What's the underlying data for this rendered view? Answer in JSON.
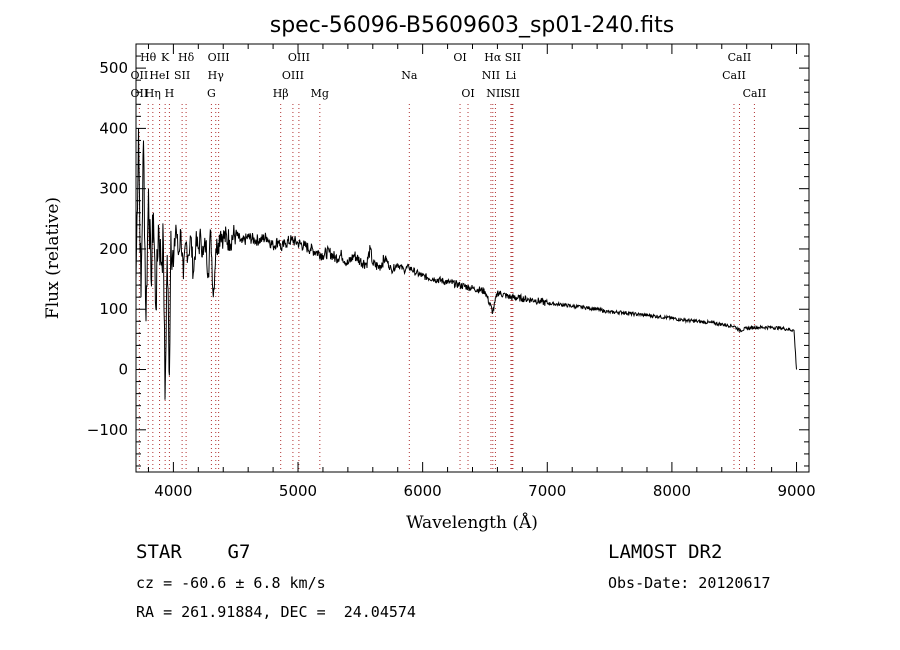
{
  "chart_data": {
    "type": "line",
    "title": "spec-56096-B5609603_sp01-240.fits",
    "xlabel": "Wavelength (Å)",
    "ylabel": "Flux (relative)",
    "xlim": [
      3700,
      9100
    ],
    "ylim": [
      -170,
      540
    ],
    "xticks": [
      4000,
      5000,
      6000,
      7000,
      8000,
      9000
    ],
    "yticks": [
      -100,
      0,
      100,
      200,
      300,
      400,
      500
    ],
    "grid": false,
    "series": [
      {
        "x": [
          3700,
          3720,
          3740,
          3760,
          3780,
          3800,
          3820,
          3840,
          3860,
          3880,
          3900,
          3920,
          3933,
          3950,
          3968,
          3980,
          4000,
          4020,
          4040,
          4060,
          4080,
          4100,
          4120,
          4140,
          4160,
          4180,
          4200,
          4220,
          4240,
          4260,
          4280,
          4300,
          4320,
          4340,
          4360,
          4380,
          4400,
          4450,
          4500,
          4550,
          4600,
          4650,
          4700,
          4750,
          4800,
          4850,
          4861,
          4900,
          4950,
          5000,
          5050,
          5100,
          5150,
          5200,
          5250,
          5300,
          5350,
          5400,
          5450,
          5500,
          5550,
          5580,
          5600,
          5650,
          5700,
          5750,
          5800,
          5850,
          5890,
          5950,
          6000,
          6100,
          6200,
          6300,
          6400,
          6500,
          6563,
          6600,
          6700,
          6800,
          6900,
          7000,
          7100,
          7200,
          7300,
          7400,
          7500,
          7600,
          7700,
          7800,
          7900,
          8000,
          8100,
          8200,
          8300,
          8400,
          8500,
          8542,
          8600,
          8662,
          8700,
          8800,
          8900,
          8980,
          9000
        ],
        "y": [
          150,
          400,
          120,
          380,
          80,
          300,
          150,
          260,
          100,
          240,
          180,
          210,
          -50,
          190,
          -10,
          230,
          170,
          240,
          190,
          230,
          150,
          210,
          190,
          220,
          160,
          210,
          200,
          220,
          190,
          210,
          160,
          230,
          120,
          200,
          210,
          230,
          220,
          215,
          225,
          210,
          220,
          215,
          215,
          220,
          205,
          215,
          200,
          210,
          215,
          210,
          205,
          200,
          195,
          190,
          195,
          185,
          190,
          175,
          190,
          180,
          175,
          200,
          175,
          170,
          185,
          165,
          175,
          165,
          170,
          160,
          155,
          150,
          145,
          140,
          135,
          130,
          95,
          128,
          120,
          118,
          115,
          110,
          108,
          105,
          103,
          100,
          95,
          95,
          92,
          90,
          88,
          85,
          82,
          80,
          78,
          75,
          72,
          65,
          68,
          70,
          70,
          70,
          68,
          65,
          0
        ]
      }
    ],
    "lines": [
      {
        "label": "Hθ",
        "x": 3798,
        "row": 0
      },
      {
        "label": "OII",
        "x": 3727,
        "row": 1
      },
      {
        "label": "OII",
        "x": 3727,
        "row": 2
      },
      {
        "label": "Hη",
        "x": 3835,
        "row": 2
      },
      {
        "label": "K",
        "x": 3934,
        "row": 0
      },
      {
        "label": "HeI",
        "x": 3889,
        "row": 1
      },
      {
        "label": "SII",
        "x": 4070,
        "row": 1
      },
      {
        "label": "H",
        "x": 3968,
        "row": 2
      },
      {
        "label": "Hδ",
        "x": 4102,
        "row": 0
      },
      {
        "label": "OIII",
        "x": 4363,
        "row": 0
      },
      {
        "label": "Hγ",
        "x": 4340,
        "row": 1
      },
      {
        "label": "G",
        "x": 4305,
        "row": 2
      },
      {
        "label": "Hβ",
        "x": 4861,
        "row": 2
      },
      {
        "label": "OIII",
        "x": 5007,
        "row": 0
      },
      {
        "label": "OIII",
        "x": 4959,
        "row": 1
      },
      {
        "label": "Mg",
        "x": 5175,
        "row": 2
      },
      {
        "label": "Na",
        "x": 5893,
        "row": 1
      },
      {
        "label": "OI",
        "x": 6300,
        "row": 0
      },
      {
        "label": "OI",
        "x": 6364,
        "row": 2
      },
      {
        "label": "Hα",
        "x": 6563,
        "row": 0
      },
      {
        "label": "SII",
        "x": 6724,
        "row": 0
      },
      {
        "label": "NII",
        "x": 6548,
        "row": 1
      },
      {
        "label": "Li",
        "x": 6708,
        "row": 1
      },
      {
        "label": "NII",
        "x": 6584,
        "row": 2
      },
      {
        "label": "SII",
        "x": 6716,
        "row": 2
      },
      {
        "label": "CaII",
        "x": 8542,
        "row": 0
      },
      {
        "label": "CaII",
        "x": 8498,
        "row": 1
      },
      {
        "label": "CaII",
        "x": 8662,
        "row": 2
      }
    ]
  },
  "info": {
    "classification": "STAR    G7",
    "survey": "LAMOST DR2",
    "velocity": "cz = -60.6 ± 6.8 km/s",
    "obs_date": "Obs-Date: 20120617",
    "coords": "RA = 261.91884, DEC =  24.04574"
  }
}
